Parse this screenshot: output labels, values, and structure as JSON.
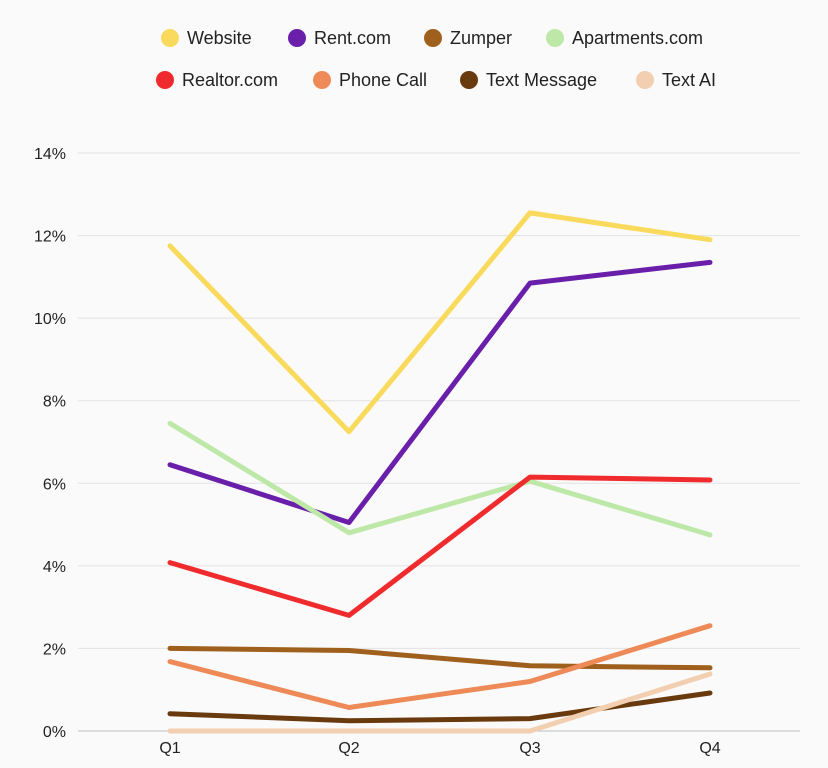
{
  "chart_data": {
    "type": "line",
    "categories": [
      "Q1",
      "Q2",
      "Q3",
      "Q4"
    ],
    "ylim": [
      0,
      14
    ],
    "yticks": [
      0,
      2,
      4,
      6,
      8,
      10,
      12,
      14
    ],
    "ytick_labels": [
      "0%",
      "2%",
      "4%",
      "6%",
      "8%",
      "10%",
      "12%",
      "14%"
    ],
    "grid": true,
    "legend_position": "top",
    "series": [
      {
        "name": "Website",
        "color": "#f9da5c",
        "values": [
          11.75,
          7.25,
          12.55,
          11.9
        ]
      },
      {
        "name": "Rent.com",
        "color": "#6a1fab",
        "values": [
          6.45,
          5.05,
          10.85,
          11.35
        ]
      },
      {
        "name": "Zumper",
        "color": "#a0601d",
        "values": [
          2.0,
          1.95,
          1.58,
          1.53
        ]
      },
      {
        "name": "Apartments.com",
        "color": "#bde8a8",
        "values": [
          7.45,
          4.8,
          6.05,
          4.75
        ]
      },
      {
        "name": "Realtor.com",
        "color": "#ef2b2d",
        "values": [
          4.08,
          2.8,
          6.15,
          6.08
        ]
      },
      {
        "name": "Phone Call",
        "color": "#ee8a57",
        "values": [
          1.68,
          0.57,
          1.2,
          2.55
        ]
      },
      {
        "name": "Text Message",
        "color": "#6a3a0f",
        "values": [
          0.42,
          0.25,
          0.3,
          0.92
        ]
      },
      {
        "name": "Text AI",
        "color": "#f3cfb1",
        "values": [
          0.0,
          0.0,
          0.0,
          1.38
        ]
      }
    ]
  }
}
